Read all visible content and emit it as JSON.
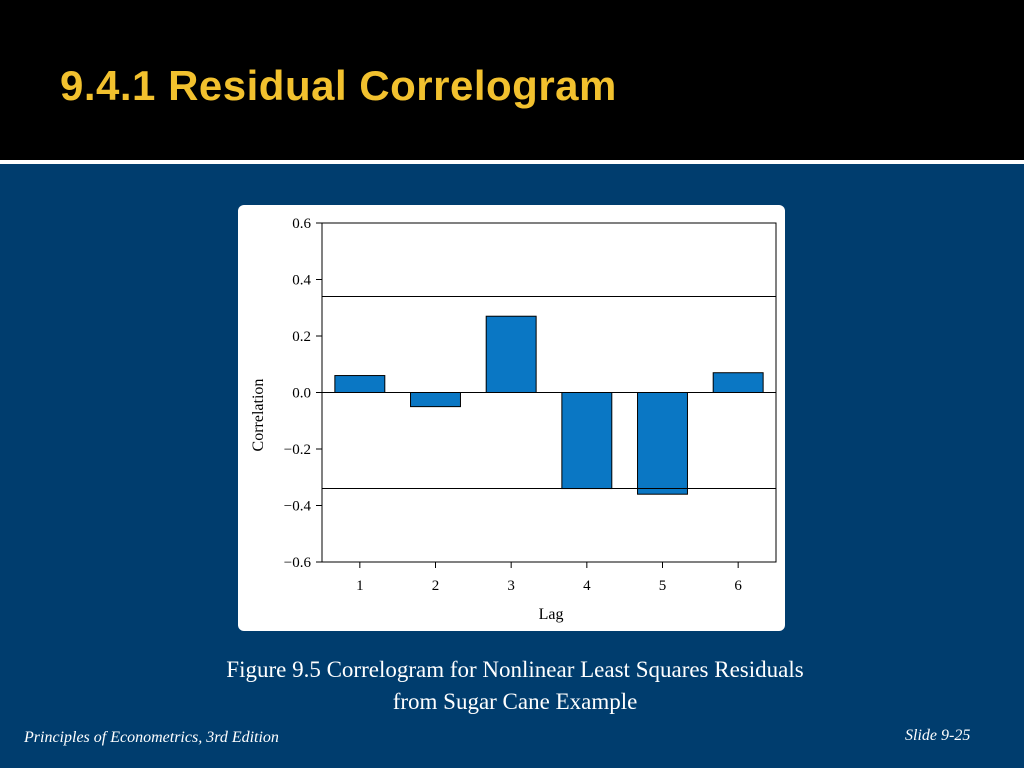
{
  "slide": {
    "title": "9.4.1 Residual Correlogram",
    "caption_line1": "Figure 9.5  Correlogram for Nonlinear Least Squares Residuals",
    "caption_line2": "from Sugar Cane Example",
    "footer_left": "Principles of Econometrics, 3rd Edition",
    "footer_right": "Slide 9-25"
  },
  "colors": {
    "background": "#003d6e",
    "title_bar": "#000000",
    "title_text": "#f2c12e",
    "bar_fill": "#0a77c4"
  },
  "chart_data": {
    "type": "bar",
    "categories": [
      "1",
      "2",
      "3",
      "4",
      "5",
      "6"
    ],
    "values": [
      0.06,
      -0.05,
      0.27,
      -0.34,
      -0.36,
      0.07
    ],
    "xlabel": "Lag",
    "ylabel": "Correlation",
    "ylim": [
      -0.6,
      0.6
    ],
    "yticks": [
      0.6,
      0.4,
      0.2,
      0.0,
      -0.2,
      -0.4,
      -0.6
    ],
    "ytick_labels": [
      "0.6",
      "0.4",
      "0.2",
      "0.0",
      "−0.2",
      "−0.4",
      "−0.6"
    ],
    "significance_bounds": [
      0.34,
      -0.34
    ],
    "zero_line": true,
    "grid": false
  }
}
